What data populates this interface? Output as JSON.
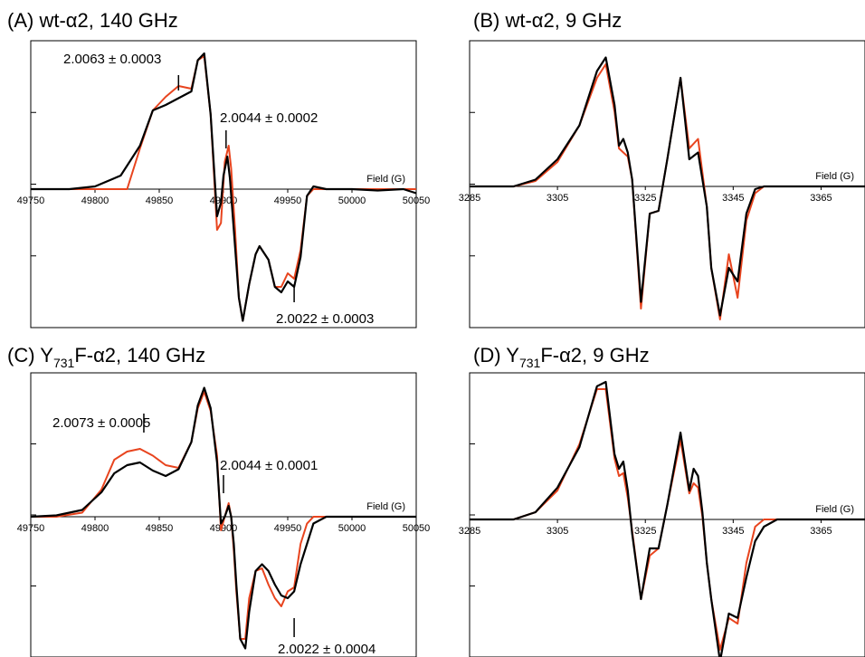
{
  "chart_data": [
    {
      "type": "line",
      "panel": "(A)",
      "title": "wt-α2, 140 GHz",
      "xlabel": "Field (G)",
      "xlim": [
        49750,
        50050
      ],
      "xticks": [
        49750,
        49800,
        49850,
        49900,
        49950,
        50000,
        50050
      ],
      "ylim": [
        -1.0,
        1.0
      ],
      "series": [
        {
          "color": "#000000",
          "x": [
            49750,
            49760,
            49780,
            49800,
            49820,
            49835,
            49845,
            49855,
            49865,
            49875,
            49880,
            49885,
            49890,
            49895,
            49898,
            49900,
            49903,
            49905,
            49908,
            49912,
            49915,
            49920,
            49925,
            49928,
            49935,
            49940,
            49945,
            49950,
            49955,
            49960,
            49965,
            49970,
            49980,
            50000,
            50020,
            50040,
            50050
          ],
          "y": [
            0.0,
            0.0,
            0.0,
            0.02,
            0.1,
            0.32,
            0.58,
            0.62,
            0.67,
            0.72,
            0.95,
            1.0,
            0.55,
            -0.2,
            -0.1,
            0.1,
            0.24,
            0.08,
            -0.3,
            -0.8,
            -0.97,
            -0.7,
            -0.48,
            -0.42,
            -0.52,
            -0.72,
            -0.76,
            -0.68,
            -0.72,
            -0.5,
            -0.05,
            0.02,
            0.0,
            0.0,
            -0.01,
            0.0,
            -0.03
          ]
        },
        {
          "color": "#e8441e",
          "x": [
            49750,
            49780,
            49800,
            49815,
            49825,
            49835,
            49845,
            49855,
            49865,
            49875,
            49880,
            49885,
            49890,
            49895,
            49898,
            49901,
            49904,
            49906,
            49909,
            49912,
            49915,
            49920,
            49925,
            49928,
            49935,
            49940,
            49945,
            49950,
            49955,
            49960,
            49965,
            49970,
            49980,
            50000,
            50050
          ],
          "y": [
            0.0,
            0.0,
            0.0,
            0.0,
            0.0,
            0.3,
            0.58,
            0.68,
            0.76,
            0.74,
            0.95,
            0.98,
            0.55,
            -0.3,
            -0.25,
            0.2,
            0.32,
            0.15,
            -0.3,
            -0.8,
            -0.97,
            -0.7,
            -0.48,
            -0.42,
            -0.52,
            -0.72,
            -0.72,
            -0.62,
            -0.66,
            -0.45,
            -0.05,
            0.0,
            0.0,
            0.0,
            0.0
          ]
        }
      ],
      "annotations": [
        {
          "text": "2.0063 ± 0.0003",
          "x": 49865
        },
        {
          "text": "2.0044 ± 0.0002",
          "x": 49902
        },
        {
          "text": "2.0022 ± 0.0003",
          "x": 49955
        }
      ]
    },
    {
      "type": "line",
      "panel": "(B)",
      "title": "wt-α2, 9 GHz",
      "xlabel": "Field (G)",
      "xlim": [
        3285,
        3375
      ],
      "xticks": [
        3285,
        3305,
        3325,
        3345,
        3365
      ],
      "ylim": [
        -1.0,
        1.0
      ],
      "series": [
        {
          "color": "#000000",
          "x": [
            3285,
            3295,
            3300,
            3305,
            3310,
            3314,
            3316,
            3318,
            3319,
            3320,
            3321,
            3322,
            3324,
            3326,
            3328,
            3330,
            3333,
            3335,
            3337,
            3339,
            3340,
            3342,
            3344,
            3346,
            3348,
            3350,
            3352,
            3355,
            3360,
            3365,
            3375
          ],
          "y": [
            0.0,
            0.0,
            0.05,
            0.2,
            0.45,
            0.85,
            0.95,
            0.6,
            0.3,
            0.35,
            0.25,
            0.05,
            -0.85,
            -0.2,
            -0.18,
            0.2,
            0.8,
            0.2,
            0.25,
            -0.15,
            -0.6,
            -0.95,
            -0.6,
            -0.7,
            -0.2,
            -0.02,
            0.0,
            0.0,
            0.0,
            0.0,
            0.0
          ]
        },
        {
          "color": "#e8441e",
          "x": [
            3285,
            3295,
            3300,
            3305,
            3310,
            3314,
            3316,
            3318,
            3319,
            3320,
            3321,
            3322,
            3324,
            3326,
            3328,
            3330,
            3333,
            3335,
            3337,
            3339,
            3340,
            3342,
            3344,
            3346,
            3348,
            3350,
            3352,
            3355,
            3360,
            3365,
            3375
          ],
          "y": [
            0.0,
            0.0,
            0.04,
            0.18,
            0.45,
            0.8,
            0.9,
            0.55,
            0.28,
            0.25,
            0.22,
            0.05,
            -0.9,
            -0.2,
            -0.18,
            0.2,
            0.8,
            0.28,
            0.35,
            -0.15,
            -0.6,
            -0.98,
            -0.5,
            -0.82,
            -0.25,
            -0.05,
            0.0,
            0.0,
            0.0,
            0.0,
            0.0
          ]
        }
      ]
    },
    {
      "type": "line",
      "panel": "(C)",
      "title": "F-α2, 140 GHz",
      "title_prefix": "Y",
      "title_sub": "731",
      "xlabel": "Field (G)",
      "xlim": [
        49750,
        50050
      ],
      "xticks": [
        49750,
        49800,
        49850,
        49900,
        49950,
        50000,
        50050
      ],
      "ylim": [
        -1.0,
        1.0
      ],
      "series": [
        {
          "color": "#000000",
          "x": [
            49750,
            49770,
            49790,
            49805,
            49815,
            49825,
            49835,
            49845,
            49855,
            49865,
            49875,
            49880,
            49885,
            49890,
            49895,
            49898,
            49901,
            49904,
            49906,
            49908,
            49910,
            49913,
            49917,
            49920,
            49925,
            49930,
            49935,
            49940,
            49945,
            49950,
            49955,
            49960,
            49965,
            49970,
            49980,
            50000,
            50050
          ],
          "y": [
            0.0,
            0.01,
            0.05,
            0.18,
            0.32,
            0.38,
            0.4,
            0.34,
            0.3,
            0.35,
            0.55,
            0.82,
            0.95,
            0.8,
            0.4,
            -0.05,
            0.0,
            0.08,
            0.0,
            -0.2,
            -0.5,
            -0.9,
            -0.97,
            -0.7,
            -0.4,
            -0.35,
            -0.4,
            -0.5,
            -0.58,
            -0.6,
            -0.55,
            -0.35,
            -0.2,
            -0.05,
            0.0,
            0.0,
            0.0
          ]
        },
        {
          "color": "#e8441e",
          "x": [
            49750,
            49770,
            49790,
            49805,
            49815,
            49825,
            49835,
            49845,
            49855,
            49865,
            49875,
            49880,
            49885,
            49890,
            49895,
            49898,
            49901,
            49904,
            49906,
            49908,
            49910,
            49913,
            49917,
            49920,
            49925,
            49930,
            49935,
            49940,
            49945,
            49950,
            49955,
            49960,
            49965,
            49970,
            49980,
            50000,
            50050
          ],
          "y": [
            0.0,
            0.0,
            0.03,
            0.2,
            0.42,
            0.48,
            0.5,
            0.45,
            0.38,
            0.36,
            0.55,
            0.8,
            0.92,
            0.78,
            0.45,
            -0.1,
            0.0,
            0.1,
            0.0,
            -0.25,
            -0.55,
            -0.9,
            -0.9,
            -0.6,
            -0.4,
            -0.38,
            -0.5,
            -0.6,
            -0.66,
            -0.55,
            -0.52,
            -0.2,
            -0.05,
            0.0,
            0.0,
            0.0,
            0.0
          ]
        }
      ],
      "annotations": [
        {
          "text": "2.0073 ± 0.0005",
          "x": 49838
        },
        {
          "text": "2.0044 ± 0.0001",
          "x": 49900
        },
        {
          "text": "2.0022 ± 0.0004",
          "x": 49955
        }
      ]
    },
    {
      "type": "line",
      "panel": "(D)",
      "title": "F-α2, 9 GHz",
      "title_prefix": "Y",
      "title_sub": "731",
      "xlabel": "Field (G)",
      "xlim": [
        3285,
        3375
      ],
      "xticks": [
        3285,
        3305,
        3325,
        3345,
        3365
      ],
      "ylim": [
        -1.0,
        1.0
      ],
      "series": [
        {
          "color": "#000000",
          "x": [
            3285,
            3295,
            3300,
            3305,
            3310,
            3314,
            3316,
            3318,
            3319,
            3320,
            3321,
            3322,
            3324,
            3326,
            3328,
            3330,
            3333,
            3335,
            3336,
            3337,
            3338,
            3339,
            3340,
            3342,
            3344,
            3346,
            3348,
            3350,
            3352,
            3355,
            3360,
            3365,
            3375
          ],
          "y": [
            0.0,
            0.0,
            0.05,
            0.22,
            0.5,
            0.92,
            0.95,
            0.45,
            0.35,
            0.4,
            0.2,
            -0.1,
            -0.55,
            -0.2,
            -0.2,
            0.1,
            0.6,
            0.2,
            0.35,
            0.3,
            0.05,
            -0.3,
            -0.55,
            -0.98,
            -0.65,
            -0.68,
            -0.4,
            -0.15,
            -0.05,
            0.0,
            0.0,
            0.0,
            0.0
          ]
        },
        {
          "color": "#e8441e",
          "x": [
            3285,
            3295,
            3300,
            3305,
            3310,
            3314,
            3316,
            3318,
            3319,
            3320,
            3321,
            3322,
            3324,
            3326,
            3328,
            3330,
            3333,
            3335,
            3336,
            3337,
            3338,
            3339,
            3340,
            3342,
            3344,
            3346,
            3348,
            3350,
            3352,
            3355,
            3360,
            3365,
            3375
          ],
          "y": [
            0.0,
            0.0,
            0.05,
            0.2,
            0.52,
            0.9,
            0.9,
            0.42,
            0.3,
            0.32,
            0.15,
            -0.08,
            -0.55,
            -0.25,
            -0.2,
            0.1,
            0.55,
            0.18,
            0.25,
            0.22,
            0.02,
            -0.3,
            -0.55,
            -0.9,
            -0.68,
            -0.72,
            -0.3,
            -0.05,
            0.0,
            0.0,
            0.0,
            0.0,
            0.0
          ]
        }
      ]
    }
  ]
}
